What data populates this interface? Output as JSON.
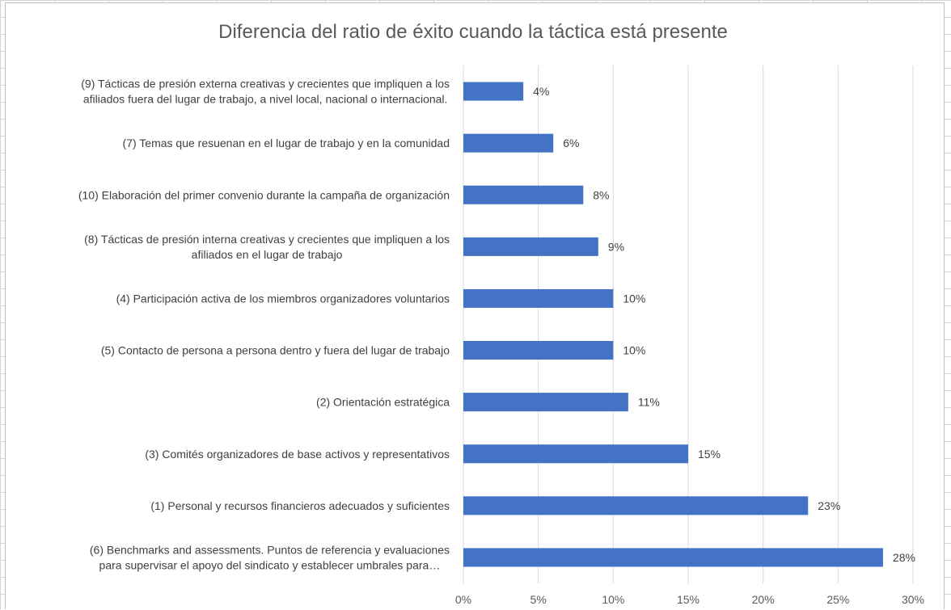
{
  "chart_data": {
    "type": "bar",
    "orientation": "horizontal",
    "title": "Diferencia del ratio de éxito cuando la táctica está presente",
    "categories": [
      [
        "(9) Tácticas de presión externa creativas y crecientes que impliquen a los",
        "afiliados fuera del lugar de trabajo, a nivel local, nacional o internacional."
      ],
      [
        "(7) Temas que resuenan en el lugar de trabajo y en la comunidad"
      ],
      [
        "(10) Elaboración del primer convenio durante la campaña de organización"
      ],
      [
        "(8) Tácticas de presión interna creativas y crecientes que impliquen a los",
        "afiliados en el lugar de trabajo"
      ],
      [
        "(4) Participación activa de los miembros organizadores voluntarios"
      ],
      [
        "(5) Contacto de persona a persona dentro y fuera del lugar de trabajo"
      ],
      [
        "(2) Orientación estratégica"
      ],
      [
        "(3) Comités organizadores de base activos y representativos"
      ],
      [
        "(1) Personal y recursos financieros adecuados y suficientes"
      ],
      [
        "(6) Benchmarks and assessments. Puntos de referencia y evaluaciones",
        "para supervisar el apoyo del sindicato y establecer umbrales para…"
      ]
    ],
    "values": [
      4,
      6,
      8,
      9,
      10,
      10,
      11,
      15,
      23,
      28
    ],
    "value_labels": [
      "4%",
      "6%",
      "8%",
      "9%",
      "10%",
      "10%",
      "11%",
      "15%",
      "23%",
      "28%"
    ],
    "xlim": [
      0,
      30
    ],
    "x_ticks": [
      0,
      5,
      10,
      15,
      20,
      25,
      30
    ],
    "x_tick_labels": [
      "0%",
      "5%",
      "10%",
      "15%",
      "20%",
      "25%",
      "30%"
    ],
    "grid": true,
    "legend": "none",
    "bar_color": "#4472c4"
  }
}
